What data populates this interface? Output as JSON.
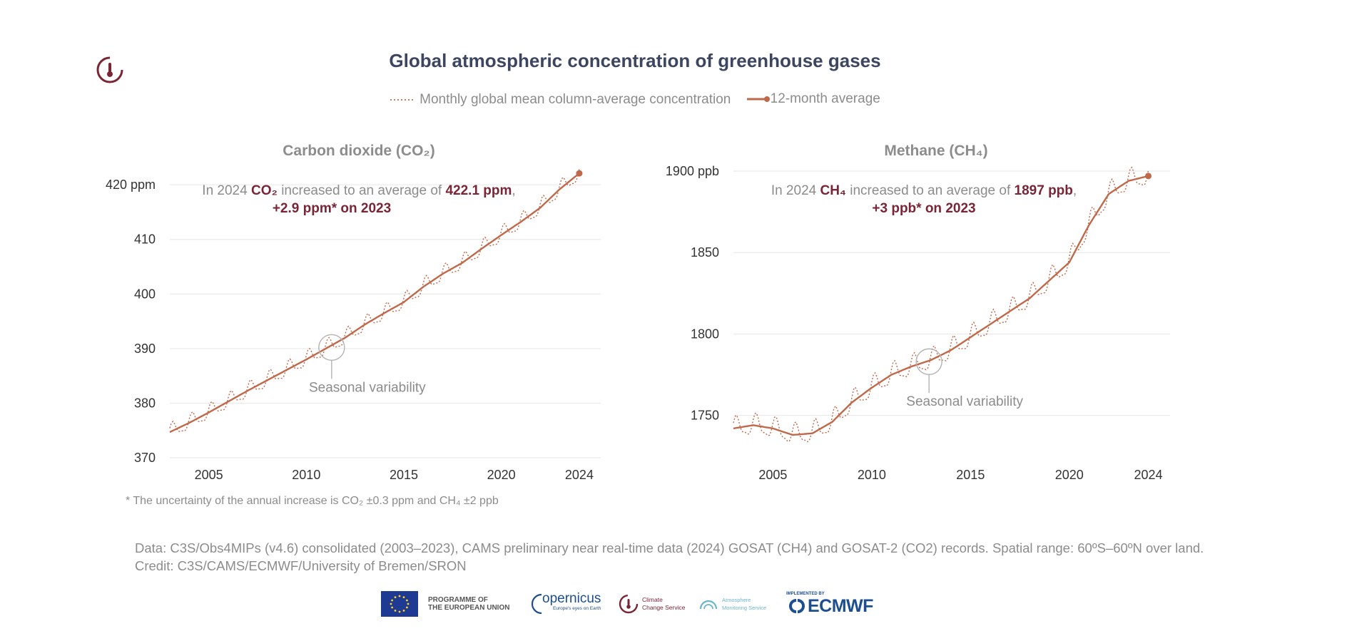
{
  "title": "Global atmospheric concentration of greenhouse gases",
  "legend": {
    "monthly": "Monthly global mean column-average concentration",
    "average": "12-month average"
  },
  "colors": {
    "series": "#c0694a",
    "title": "#3d4660",
    "accent": "#7a2535",
    "muted": "#8c8c8c",
    "grid": "#e6e6e6"
  },
  "chart_data": [
    {
      "type": "line",
      "title": "Carbon dioxide (CO₂)",
      "x": [
        2003,
        2004,
        2005,
        2006,
        2007,
        2008,
        2009,
        2010,
        2011,
        2012,
        2013,
        2014,
        2015,
        2016,
        2017,
        2018,
        2019,
        2020,
        2021,
        2022,
        2023,
        2024
      ],
      "series": [
        {
          "name": "12-month average",
          "values": [
            374.7,
            376.4,
            378.3,
            380.3,
            382.3,
            384.2,
            386.1,
            388.0,
            390.0,
            392.0,
            394.4,
            396.5,
            398.5,
            401.3,
            403.7,
            405.7,
            408.3,
            410.8,
            413.2,
            415.8,
            419.2,
            422.1
          ]
        },
        {
          "name": "Monthly global mean column-average concentration",
          "seasonal_amplitude": 1.3
        }
      ],
      "xticks": [
        2005,
        2010,
        2015,
        2020,
        2024
      ],
      "yticks": [
        370,
        380,
        390,
        400,
        410,
        420
      ],
      "ytick_labels": [
        "370",
        "380",
        "390",
        "400",
        "410",
        "420 ppm"
      ],
      "ylim": [
        370,
        422.5
      ],
      "xlim": [
        2003,
        2025.1
      ],
      "annotation": {
        "pre": "In 2024 ",
        "gas": "CO₂",
        "mid": " increased to an average of ",
        "value": "422.1 ppm",
        "post": ",",
        "line2": "+2.9 ppm* on 2023"
      },
      "seasonal_label": "Seasonal variability",
      "seasonal_marker": {
        "x": 2011.3,
        "y": 390.2
      }
    },
    {
      "type": "line",
      "title": "Methane (CH₄)",
      "x": [
        2003,
        2004,
        2005,
        2006,
        2007,
        2008,
        2009,
        2010,
        2011,
        2012,
        2013,
        2014,
        2015,
        2016,
        2017,
        2018,
        2019,
        2020,
        2021,
        2022,
        2023,
        2024
      ],
      "series": [
        {
          "name": "12-month average",
          "values": [
            1742,
            1744,
            1742,
            1738,
            1739,
            1746,
            1758,
            1767,
            1775,
            1780,
            1784,
            1790,
            1798,
            1806,
            1814,
            1822,
            1833,
            1844,
            1867,
            1886,
            1894,
            1897
          ]
        },
        {
          "name": "Monthly global mean column-average concentration",
          "seasonal_amplitude": 6
        }
      ],
      "xticks": [
        2005,
        2010,
        2015,
        2020,
        2024
      ],
      "yticks": [
        1750,
        1800,
        1850,
        1900
      ],
      "ytick_labels": [
        "1750",
        "1800",
        "1850",
        "1900 ppb"
      ],
      "ylim": [
        1724,
        1900
      ],
      "xlim": [
        2003,
        2025.1
      ],
      "annotation": {
        "pre": "In 2024 ",
        "gas": "CH₄",
        "mid": " increased to an average of ",
        "value": "1897 ppb",
        "post": ",",
        "line2": "+3 ppb* on 2023"
      },
      "seasonal_label": "Seasonal variability",
      "seasonal_marker": {
        "x": 2012.9,
        "y": 1783
      }
    }
  ],
  "footnote": "* The uncertainty of the annual increase is CO₂ ±0.3 ppm and CH₄ ±2 ppb",
  "data_note": "Data: C3S/Obs4MIPs (v4.6) consolidated (2003–2023), CAMS preliminary near real-time data (2024) GOSAT (CH4) and GOSAT-2 (CO2) records. Spatial range: 60ºS–60ºN over land.",
  "credit": "Credit: C3S/CAMS/ECMWF/University of Bremen/SRON",
  "logos": {
    "eu_line1": "PROGRAMME OF",
    "eu_line2": "THE EUROPEAN UNION",
    "copernicus": "opernicus",
    "copernicus_tag": "Europe's eyes on Earth",
    "c3s_line1": "Climate",
    "c3s_line2": "Change Service",
    "cams_line1": "Atmosphere",
    "cams_line2": "Monitoring Service",
    "ecmwf_tag": "IMPLEMENTED BY",
    "ecmwf": "ECMWF"
  }
}
